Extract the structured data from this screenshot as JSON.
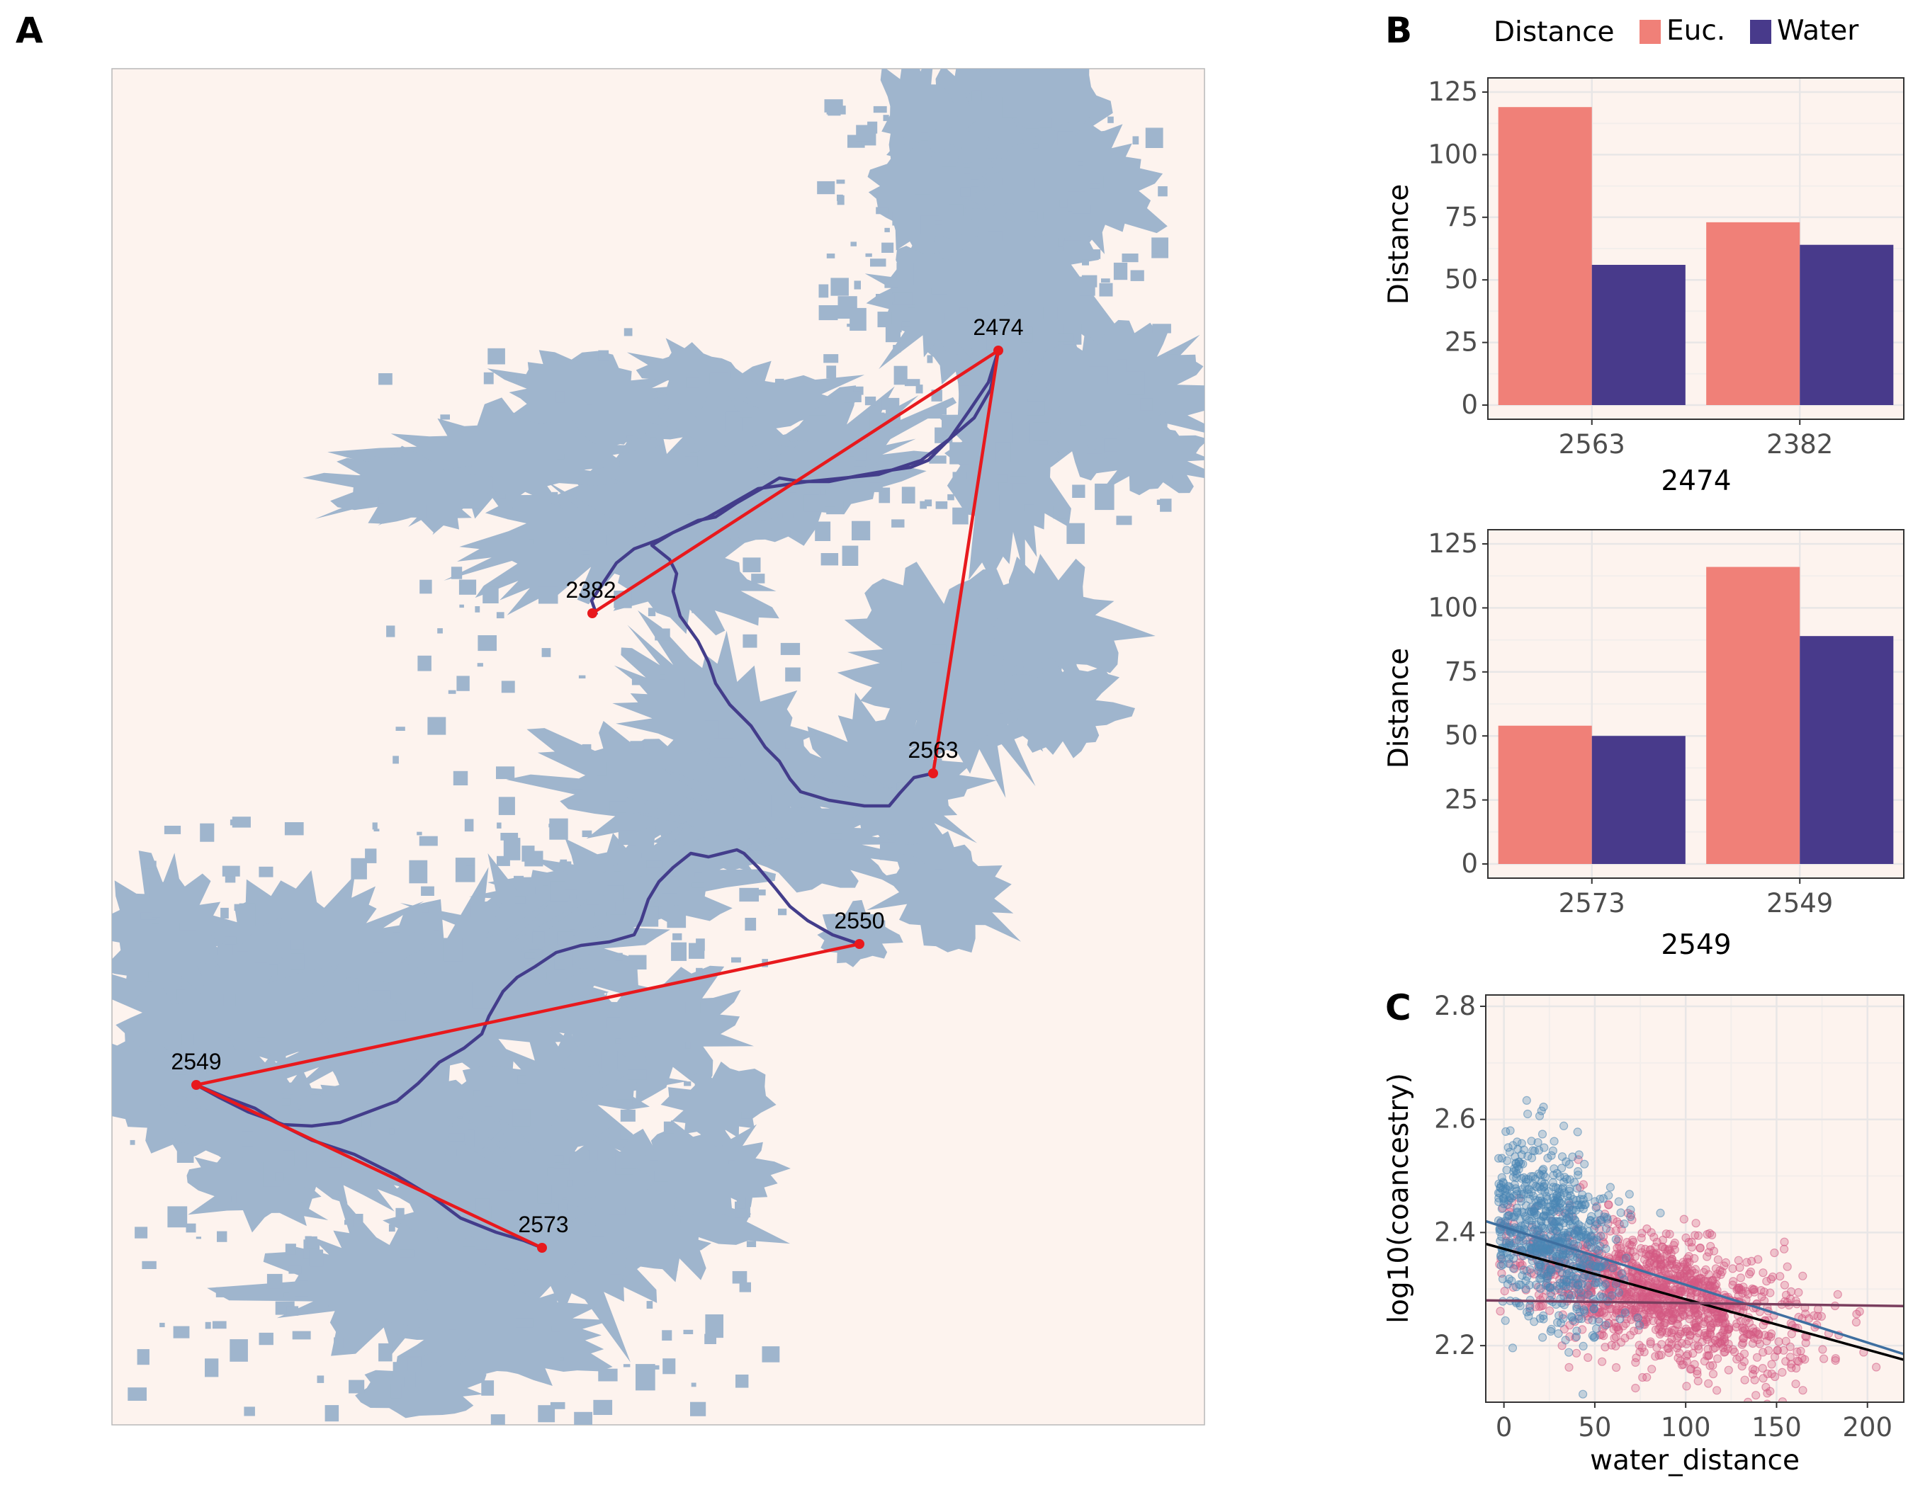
{
  "panels": {
    "a": "A",
    "b": "B",
    "c": "C"
  },
  "colors": {
    "background": "#fdf3ee",
    "water": "#9fb5cd",
    "euclid_line": "#e8191d",
    "water_path": "#433d8b",
    "euc_bar": "#f08078",
    "water_bar": "#483a8b",
    "grid_major": "#e8e6e6",
    "grid_minor": "#f3eeeb",
    "scatter_a": "#4a86b4",
    "scatter_b": "#d45a84",
    "fit_all": "#000000",
    "fit_a": "#3e6fa0",
    "fit_b": "#7a3e5e"
  },
  "map": {
    "sites": [
      {
        "id": "2474",
        "label": "2474"
      },
      {
        "id": "2382",
        "label": "2382"
      },
      {
        "id": "2563",
        "label": "2563"
      },
      {
        "id": "2550",
        "label": "2550"
      },
      {
        "id": "2549",
        "label": "2549"
      },
      {
        "id": "2573",
        "label": "2573"
      }
    ],
    "euclidean_links": [
      [
        "2474",
        "2382"
      ],
      [
        "2474",
        "2563"
      ],
      [
        "2550",
        "2549"
      ],
      [
        "2549",
        "2573"
      ]
    ],
    "water_paths": [
      "2474-2382",
      "2474-2563",
      "2550-2549",
      "2549-2573"
    ]
  },
  "legend": {
    "title": "Distance",
    "items": [
      {
        "label": "Euc.",
        "color": "#f08078"
      },
      {
        "label": "Water",
        "color": "#483a8b"
      }
    ]
  },
  "chart_data": [
    {
      "type": "bar",
      "panel": "B-top",
      "categories": [
        "2563",
        "2382"
      ],
      "series": [
        {
          "name": "Euc.",
          "values": [
            119,
            73
          ]
        },
        {
          "name": "Water",
          "values": [
            56,
            64
          ]
        }
      ],
      "xlabel": "2474",
      "ylabel": "Distance",
      "ylim": [
        0,
        125
      ],
      "yticks": [
        0,
        25,
        50,
        75,
        100,
        125
      ],
      "grid": true
    },
    {
      "type": "bar",
      "panel": "B-bottom",
      "categories": [
        "2573",
        "2549"
      ],
      "series": [
        {
          "name": "Euc.",
          "values": [
            54,
            116
          ]
        },
        {
          "name": "Water",
          "values": [
            50,
            89
          ]
        }
      ],
      "xlabel": "2549",
      "ylabel": "Distance",
      "ylim": [
        0,
        125
      ],
      "yticks": [
        0,
        25,
        50,
        75,
        100,
        125
      ],
      "grid": true
    },
    {
      "type": "scatter",
      "panel": "C",
      "xlabel": "water_distance",
      "ylabel": "log10(coancestry)",
      "xlim": [
        -10,
        220
      ],
      "ylim": [
        2.1,
        2.82
      ],
      "xticks": [
        0,
        50,
        100,
        150,
        200
      ],
      "yticks": [
        2.2,
        2.4,
        2.6,
        2.8
      ],
      "groups": [
        {
          "color": "#4a86b4",
          "x_mean": 25,
          "x_sd": 18,
          "y_mean": 2.4,
          "y_sd": 0.075,
          "n": 700
        },
        {
          "color": "#d45a84",
          "x_mean": 85,
          "x_sd": 38,
          "y_mean": 2.29,
          "y_sd": 0.055,
          "n": 1300
        }
      ],
      "fit_lines": [
        {
          "color": "#000000",
          "x": [
            -10,
            220
          ],
          "y": [
            2.38,
            2.175
          ]
        },
        {
          "color": "#3e6fa0",
          "x": [
            -10,
            220
          ],
          "y": [
            2.42,
            2.185
          ]
        },
        {
          "color": "#7a3e5e",
          "x": [
            -10,
            220
          ],
          "y": [
            2.28,
            2.27
          ]
        }
      ],
      "grid": true
    }
  ]
}
